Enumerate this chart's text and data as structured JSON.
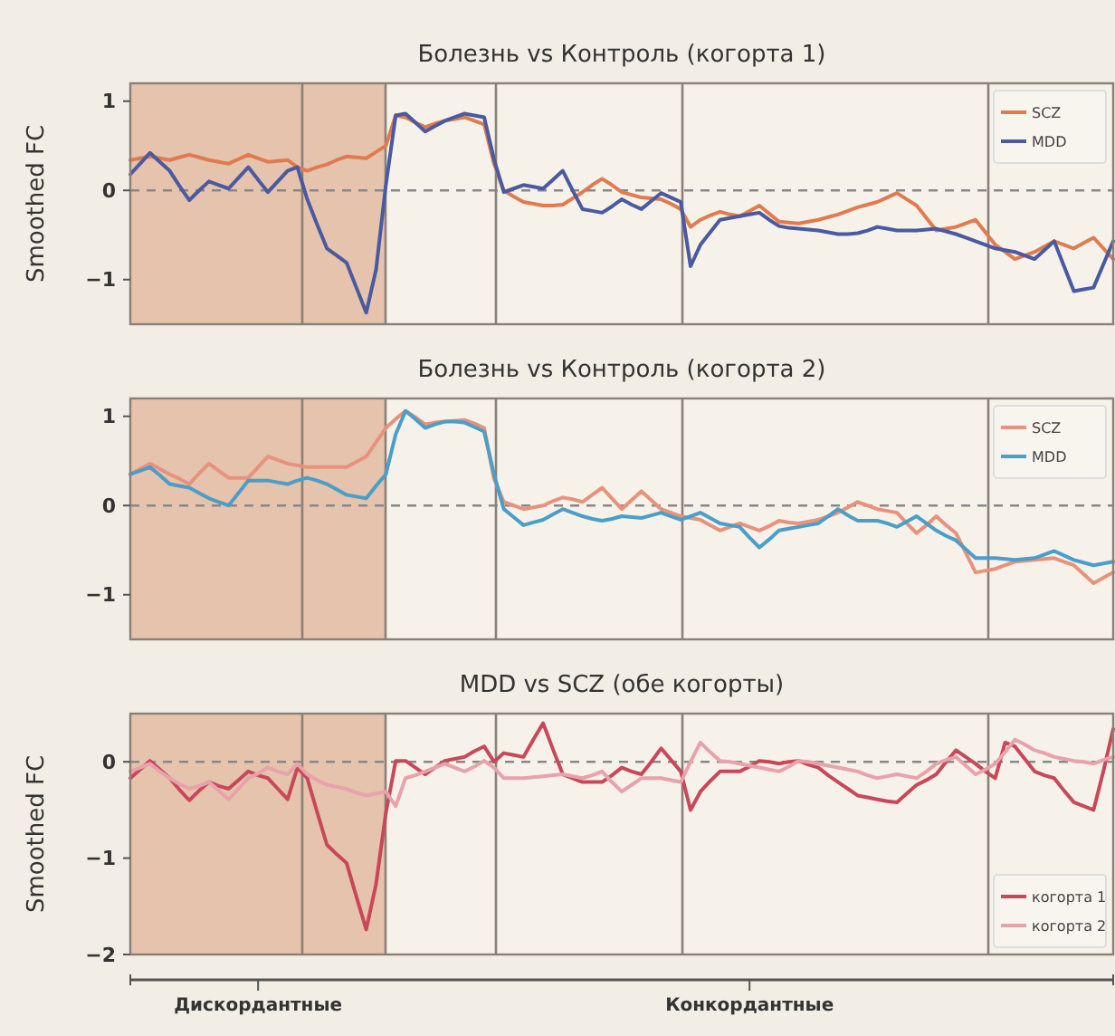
{
  "chart_data": [
    {
      "type": "line",
      "title": "Болезнь vs Контроль (когорта 1)",
      "ylabel": "Smoothed FC",
      "categories": [
        null,
        null,
        null,
        null,
        null,
        null,
        null,
        null,
        null,
        null,
        null,
        null,
        null,
        null,
        null,
        null,
        null,
        null,
        null,
        null,
        null,
        null,
        null,
        null,
        null,
        null,
        null,
        null,
        null,
        null,
        null,
        null,
        null,
        null,
        null,
        null,
        null,
        null,
        null,
        null,
        null,
        null,
        null,
        null,
        null,
        null,
        null,
        null,
        null,
        null,
        null,
        null,
        null,
        null,
        null,
        null,
        null,
        null,
        null,
        null,
        null,
        null,
        null,
        null,
        null,
        null,
        null,
        null,
        null,
        null,
        null,
        null,
        null,
        null,
        null,
        null,
        null,
        null,
        null,
        null,
        null,
        null,
        null,
        null,
        null,
        null,
        null,
        null,
        null,
        null,
        null,
        null,
        null,
        null,
        null,
        null,
        null,
        null,
        null,
        null,
        null
      ],
      "ylim": [
        -1.5,
        1.2
      ],
      "yticks": [
        {
          "value": 1,
          "label": "1"
        },
        {
          "value": 0,
          "label": "0"
        },
        {
          "value": -1,
          "label": "−1"
        }
      ],
      "tick_labels": "y",
      "legend": "top right",
      "ref_lines": [
        {
          "axis": "y",
          "value": 0,
          "color": "#888888",
          "line_style": "dashed"
        }
      ],
      "series": [
        {
          "name": "SCZ",
          "color": "#e07b4f",
          "values": [
            0.34,
            0.36,
            0.38,
            0.36,
            0.34,
            0.37,
            0.4,
            0.37,
            0.34,
            0.32,
            0.3,
            0.35,
            0.4,
            0.36,
            0.32,
            0.33,
            0.34,
            0.26,
            0.22,
            0.26,
            0.29,
            0.34,
            0.38,
            0.37,
            0.36,
            0.43,
            0.5,
            0.84,
            0.82,
            0.76,
            0.71,
            0.75,
            0.78,
            0.8,
            0.82,
            0.78,
            0.74,
            0.3,
            0,
            -0.07,
            -0.13,
            -0.15,
            -0.17,
            -0.17,
            -0.16,
            -0.09,
            -0.02,
            0.06,
            0.13,
            0.06,
            -0.02,
            -0.05,
            -0.08,
            -0.09,
            -0.1,
            -0.15,
            -0.21,
            -0.41,
            -0.33,
            -0.28,
            -0.24,
            -0.27,
            -0.29,
            -0.23,
            -0.17,
            -0.26,
            -0.35,
            -0.36,
            -0.37,
            -0.35,
            -0.33,
            -0.3,
            -0.27,
            -0.23,
            -0.19,
            -0.16,
            -0.13,
            -0.08,
            -0.03,
            -0.1,
            -0.17,
            -0.31,
            -0.45,
            -0.43,
            -0.41,
            -0.37,
            -0.33,
            -0.47,
            -0.61,
            -0.69,
            -0.77,
            -0.73,
            -0.69,
            -0.63,
            -0.57,
            -0.61,
            -0.65,
            -0.59,
            -0.53,
            -0.65,
            -0.77
          ]
        },
        {
          "name": "MDD",
          "color": "#4a5aa0",
          "values": [
            0.18,
            0.3,
            0.42,
            0.32,
            0.22,
            0.05,
            -0.11,
            0,
            0.1,
            0.06,
            0.02,
            0.14,
            0.26,
            0.12,
            -0.02,
            0.1,
            0.22,
            0.26,
            -0.1,
            -0.38,
            -0.65,
            -0.73,
            -0.81,
            -1.09,
            -1.37,
            -0.89,
            0.06,
            0.84,
            0.86,
            0.76,
            0.66,
            0.72,
            0.78,
            0.82,
            0.86,
            0.84,
            0.82,
            0.35,
            -0.02,
            0.02,
            0.06,
            0.04,
            0.02,
            0.12,
            0.22,
            0,
            -0.21,
            -0.23,
            -0.25,
            -0.18,
            -0.1,
            -0.16,
            -0.21,
            -0.12,
            -0.03,
            -0.08,
            -0.13,
            -0.85,
            -0.61,
            -0.47,
            -0.33,
            -0.31,
            -0.29,
            -0.27,
            -0.25,
            -0.33,
            -0.4,
            -0.42,
            -0.43,
            -0.44,
            -0.45,
            -0.47,
            -0.49,
            -0.49,
            -0.48,
            -0.45,
            -0.41,
            -0.43,
            -0.45,
            -0.45,
            -0.45,
            -0.44,
            -0.43,
            -0.46,
            -0.49,
            -0.53,
            -0.57,
            -0.61,
            -0.65,
            -0.67,
            -0.69,
            -0.73,
            -0.77,
            -0.67,
            -0.57,
            -0.85,
            -1.13,
            -1.11,
            -1.09,
            -0.83,
            -0.57
          ]
        }
      ]
    },
    {
      "type": "line",
      "title": "Болезнь vs Контроль (когорта 2)",
      "categories": [
        null,
        null,
        null,
        null,
        null,
        null,
        null,
        null,
        null,
        null,
        null,
        null,
        null,
        null,
        null,
        null,
        null,
        null,
        null,
        null,
        null,
        null,
        null,
        null,
        null,
        null,
        null,
        null,
        null,
        null,
        null,
        null,
        null,
        null,
        null,
        null,
        null,
        null,
        null,
        null,
        null,
        null,
        null,
        null,
        null,
        null,
        null,
        null,
        null,
        null,
        null,
        null,
        null,
        null,
        null,
        null,
        null,
        null,
        null,
        null,
        null,
        null,
        null,
        null,
        null,
        null,
        null,
        null,
        null,
        null,
        null,
        null,
        null,
        null,
        null,
        null,
        null,
        null,
        null,
        null,
        null,
        null,
        null,
        null,
        null,
        null,
        null,
        null,
        null,
        null,
        null,
        null,
        null,
        null,
        null,
        null,
        null,
        null,
        null,
        null,
        null
      ],
      "ylim": [
        -1.5,
        1.2
      ],
      "yticks": [
        {
          "value": 1,
          "label": "1"
        },
        {
          "value": 0,
          "label": "0"
        },
        {
          "value": -1,
          "label": "−1"
        }
      ],
      "tick_labels": "y",
      "legend": "top right",
      "ref_lines": [
        {
          "axis": "y",
          "value": 0,
          "color": "#888888",
          "line_style": "dashed"
        }
      ],
      "series": [
        {
          "name": "SCZ",
          "color": "#e8927c",
          "values": [
            0.35,
            0.41,
            0.47,
            0.41,
            0.35,
            0.3,
            0.24,
            0.36,
            0.47,
            0.39,
            0.31,
            0.31,
            0.31,
            0.43,
            0.55,
            0.51,
            0.47,
            0.45,
            0.43,
            0.43,
            0.43,
            0.43,
            0.43,
            0.49,
            0.55,
            0.71,
            0.87,
            0.97,
            1.06,
            0.99,
            0.91,
            0.93,
            0.94,
            0.95,
            0.96,
            0.92,
            0.87,
            0.3,
            0.04,
            0,
            -0.04,
            -0.02,
            0,
            0.05,
            0.09,
            0.07,
            0.04,
            0.12,
            0.2,
            0.08,
            -0.04,
            0.06,
            0.16,
            0.06,
            -0.04,
            -0.08,
            -0.12,
            -0.14,
            -0.16,
            -0.22,
            -0.28,
            -0.24,
            -0.2,
            -0.24,
            -0.28,
            -0.23,
            -0.17,
            -0.19,
            -0.2,
            -0.18,
            -0.16,
            -0.12,
            -0.08,
            -0.02,
            0.04,
            0,
            -0.04,
            -0.06,
            -0.08,
            -0.2,
            -0.31,
            -0.22,
            -0.12,
            -0.22,
            -0.31,
            -0.53,
            -0.75,
            -0.73,
            -0.71,
            -0.67,
            -0.63,
            -0.62,
            -0.61,
            -0.6,
            -0.59,
            -0.63,
            -0.67,
            -0.77,
            -0.87,
            -0.81,
            -0.75
          ]
        },
        {
          "name": "MDD",
          "color": "#4a9ec8",
          "values": [
            0.35,
            0.39,
            0.43,
            0.34,
            0.24,
            0.22,
            0.2,
            0.14,
            0.08,
            0.04,
            0,
            0.14,
            0.28,
            0.28,
            0.28,
            0.26,
            0.24,
            0.28,
            0.31,
            0.28,
            0.24,
            0.18,
            0.12,
            0.1,
            0.08,
            0.22,
            0.35,
            0.8,
            1.06,
            0.97,
            0.87,
            0.91,
            0.94,
            0.94,
            0.93,
            0.88,
            0.83,
            0.35,
            -0.04,
            -0.13,
            -0.22,
            -0.19,
            -0.16,
            -0.1,
            -0.04,
            -0.08,
            -0.12,
            -0.15,
            -0.17,
            -0.15,
            -0.12,
            -0.13,
            -0.14,
            -0.11,
            -0.08,
            -0.12,
            -0.16,
            -0.12,
            -0.08,
            -0.14,
            -0.2,
            -0.22,
            -0.24,
            -0.36,
            -0.47,
            -0.38,
            -0.28,
            -0.26,
            -0.24,
            -0.22,
            -0.2,
            -0.12,
            -0.04,
            -0.11,
            -0.17,
            -0.17,
            -0.17,
            -0.2,
            -0.24,
            -0.18,
            -0.12,
            -0.2,
            -0.28,
            -0.34,
            -0.39,
            -0.49,
            -0.59,
            -0.59,
            -0.59,
            -0.6,
            -0.61,
            -0.6,
            -0.59,
            -0.55,
            -0.51,
            -0.56,
            -0.61,
            -0.64,
            -0.67,
            -0.65,
            -0.63
          ]
        }
      ]
    },
    {
      "type": "line",
      "title": "MDD vs SCZ (обе когорты)",
      "ylabel": "Smoothed FC",
      "categories": [
        null,
        null,
        null,
        null,
        null,
        null,
        null,
        null,
        null,
        null,
        null,
        null,
        null,
        "Дискордантные",
        null,
        null,
        null,
        null,
        null,
        null,
        null,
        null,
        null,
        null,
        null,
        null,
        null,
        null,
        null,
        null,
        null,
        null,
        null,
        null,
        null,
        null,
        null,
        null,
        null,
        null,
        null,
        null,
        null,
        null,
        null,
        null,
        null,
        null,
        null,
        null,
        null,
        null,
        null,
        null,
        null,
        null,
        null,
        null,
        null,
        null,
        null,
        null,
        null,
        "Конкордантные",
        null,
        null,
        null,
        null,
        null,
        null,
        null,
        null,
        null,
        null,
        null,
        null,
        null,
        null,
        null,
        null,
        null,
        null,
        null,
        null,
        null,
        null,
        null,
        null,
        null,
        null,
        null,
        null,
        null,
        null,
        null,
        null,
        null,
        null,
        null,
        null,
        null
      ],
      "ylim": [
        -2,
        0.5
      ],
      "yticks": [
        {
          "value": 0,
          "label": "0"
        },
        {
          "value": -1,
          "label": "−1"
        },
        {
          "value": -2,
          "label": "−2"
        }
      ],
      "legend": "bottom right",
      "ref_lines": [
        {
          "axis": "y",
          "value": 0,
          "color": "#888888",
          "line_style": "dashed"
        }
      ],
      "series": [
        {
          "name": "когорта 1",
          "color": "#c8485a",
          "values": [
            -0.17,
            -0.08,
            0.01,
            -0.08,
            -0.17,
            -0.29,
            -0.4,
            -0.3,
            -0.21,
            -0.25,
            -0.28,
            -0.19,
            -0.1,
            -0.14,
            -0.17,
            -0.28,
            -0.39,
            -0.06,
            -0.17,
            -0.52,
            -0.86,
            -0.96,
            -1.05,
            -1.4,
            -1.74,
            -1.27,
            -0.53,
            0.01,
            0.01,
            -0.06,
            -0.13,
            -0.06,
            0.01,
            0.03,
            0.05,
            0.11,
            0.16,
            0,
            0.09,
            0.07,
            0.05,
            0.23,
            0.4,
            0.13,
            -0.13,
            -0.17,
            -0.21,
            -0.21,
            -0.21,
            -0.14,
            -0.06,
            -0.1,
            -0.13,
            0,
            0.14,
            0.02,
            -0.1,
            -0.5,
            -0.31,
            -0.2,
            -0.1,
            -0.1,
            -0.1,
            -0.05,
            0.01,
            0,
            -0.02,
            0,
            0.01,
            -0.03,
            -0.06,
            -0.14,
            -0.21,
            -0.28,
            -0.35,
            -0.37,
            -0.39,
            -0.41,
            -0.42,
            -0.33,
            -0.24,
            -0.19,
            -0.13,
            0,
            0.12,
            0.05,
            -0.02,
            -0.1,
            -0.17,
            0.2,
            0.16,
            0.03,
            -0.1,
            -0.14,
            -0.17,
            -0.3,
            -0.42,
            -0.46,
            -0.5,
            -0.1,
            0.34
          ]
        },
        {
          "name": "когорта 2",
          "color": "#e8a2aa",
          "values": [
            -0.1,
            -0.06,
            -0.02,
            -0.1,
            -0.17,
            -0.23,
            -0.28,
            -0.25,
            -0.21,
            -0.3,
            -0.39,
            -0.28,
            -0.17,
            -0.12,
            -0.06,
            -0.1,
            -0.13,
            -0.02,
            -0.13,
            -0.19,
            -0.24,
            -0.26,
            -0.28,
            -0.32,
            -0.35,
            -0.33,
            -0.31,
            -0.46,
            -0.17,
            -0.14,
            -0.1,
            -0.06,
            -0.02,
            -0.06,
            -0.1,
            -0.05,
            0.01,
            -0.06,
            -0.17,
            -0.17,
            -0.17,
            -0.16,
            -0.15,
            -0.14,
            -0.13,
            -0.15,
            -0.17,
            -0.14,
            -0.1,
            -0.21,
            -0.31,
            -0.24,
            -0.17,
            -0.17,
            -0.17,
            -0.19,
            -0.21,
            0,
            0.2,
            0.1,
            0.01,
            0,
            -0.02,
            -0.04,
            -0.06,
            -0.08,
            -0.1,
            -0.05,
            0.01,
            0,
            -0.02,
            -0.04,
            -0.06,
            -0.08,
            -0.1,
            -0.14,
            -0.17,
            -0.15,
            -0.13,
            -0.15,
            -0.17,
            -0.1,
            -0.02,
            0.02,
            0.05,
            -0.04,
            -0.13,
            -0.08,
            -0.02,
            0.1,
            0.23,
            0.18,
            0.12,
            0.09,
            0.05,
            0.03,
            0.01,
            0,
            -0.02,
            0.02,
            0.05
          ]
        }
      ]
    }
  ]
}
